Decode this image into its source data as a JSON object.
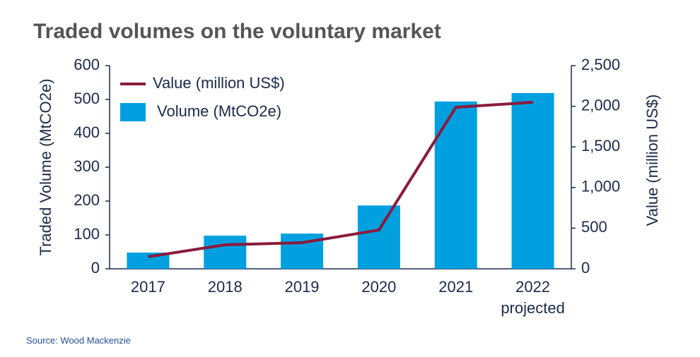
{
  "chart_data": {
    "type": "bar_line",
    "title": "Traded volumes on the voluntary market",
    "source": "Source: Wood Mackenzie",
    "categories": [
      "2017",
      "2018",
      "2019",
      "2020",
      "2021",
      "2022 projected"
    ],
    "ylabel": "Traded Volume (MtCO2e)",
    "y2label": "Value (million US$)",
    "series": [
      {
        "name": "Volume (MtCO2e)",
        "kind": "bar",
        "color": "#00a0e0",
        "values": [
          48,
          98,
          104,
          187,
          494,
          519
        ]
      },
      {
        "name": "Value (million US$)",
        "kind": "line",
        "axis": "y2",
        "color": "#8c1a3c",
        "values": [
          148,
          295,
          321,
          477,
          1988,
          2049
        ]
      }
    ],
    "ylim": [
      0,
      600
    ],
    "yticks": [
      0,
      100,
      200,
      300,
      400,
      500,
      600
    ],
    "y2lim": [
      0,
      2500
    ],
    "y2ticks": [
      {
        "value": 0,
        "label": "0"
      },
      {
        "value": 500,
        "label": "500"
      },
      {
        "value": 1000,
        "label": "1,000"
      },
      {
        "value": 1500,
        "label": "1,500"
      },
      {
        "value": 2000,
        "label": "2,000"
      },
      {
        "value": 2500,
        "label": "2,500"
      }
    ],
    "legend": "upper-left"
  }
}
